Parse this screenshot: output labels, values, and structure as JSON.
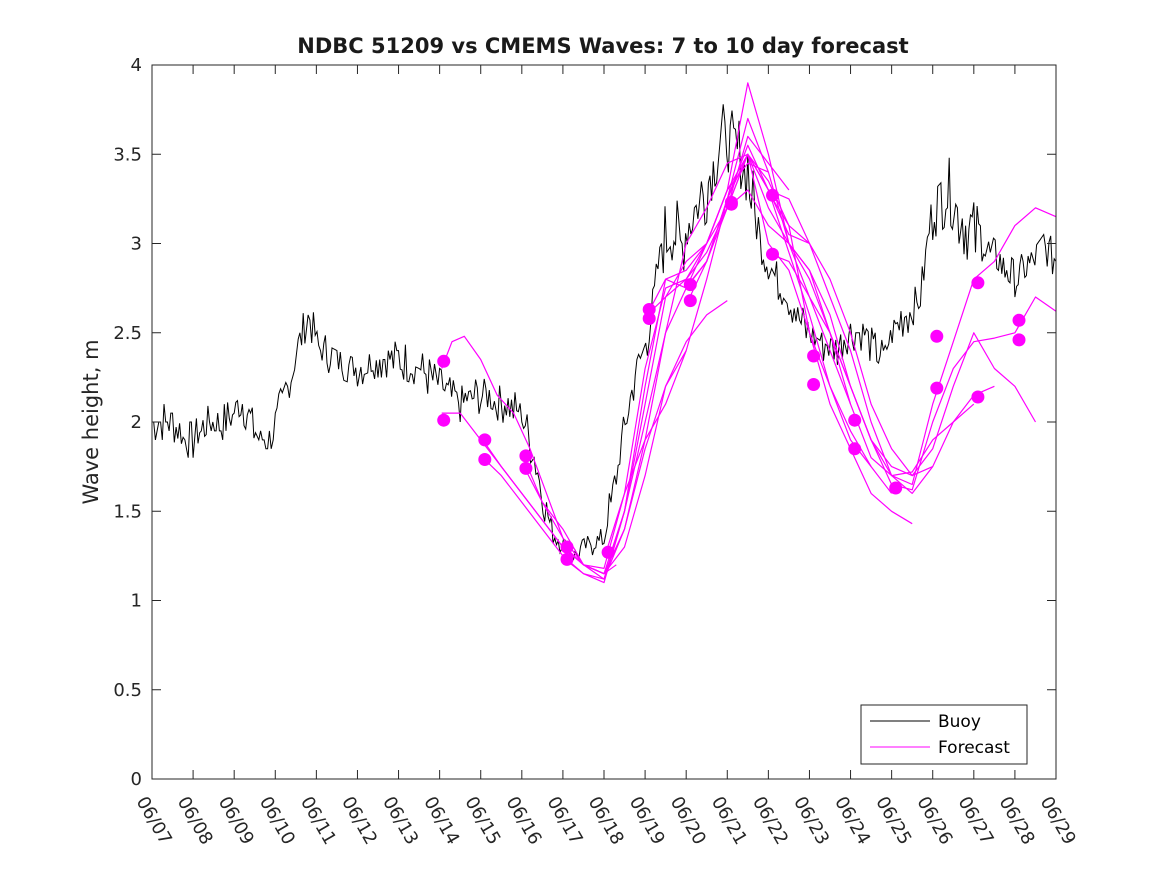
{
  "chart_data": {
    "type": "line",
    "title": "NDBC 51209 vs CMEMS Waves: 7 to 10 day forecast",
    "xlabel": "",
    "ylabel": "Wave height, m",
    "x_tick_labels": [
      "06/07",
      "06/08",
      "06/09",
      "06/10",
      "06/11",
      "06/12",
      "06/13",
      "06/14",
      "06/15",
      "06/16",
      "06/17",
      "06/18",
      "06/19",
      "06/20",
      "06/21",
      "06/22",
      "06/23",
      "06/24",
      "06/25",
      "06/26",
      "06/27",
      "06/28",
      "06/29"
    ],
    "xlim": [
      "06/07",
      "06/29"
    ],
    "ylim": [
      0,
      4
    ],
    "y_ticks": [
      "0",
      "0.5",
      "1",
      "1.5",
      "2",
      "2.5",
      "3",
      "3.5",
      "4"
    ],
    "grid": false,
    "legend": {
      "placement": "bottom-right",
      "entries": [
        "Buoy",
        "Forecast"
      ]
    },
    "colors": {
      "buoy": "#000000",
      "forecast": "#ff00ff"
    },
    "series": [
      {
        "name": "Buoy",
        "x_days_from_0607": [
          0,
          0.5,
          0.8,
          1.0,
          1.4,
          1.8,
          2.2,
          2.6,
          2.9,
          3.0,
          3.3,
          3.6,
          3.8,
          4.1,
          4.5,
          5.0,
          5.5,
          6.0,
          6.5,
          7.0,
          7.5,
          8.0,
          8.5,
          9.0,
          9.3,
          9.6,
          9.8,
          10.1,
          10.3,
          10.6,
          11.0,
          11.3,
          11.6,
          11.8,
          12.1,
          12.4,
          12.7,
          12.9,
          13.2,
          13.5,
          13.7,
          13.9,
          14.2,
          14.5,
          14.8,
          15.0,
          15.2,
          15.5,
          15.8,
          16.0,
          16.3,
          16.6,
          17.0,
          17.3,
          17.6,
          17.8,
          18.1,
          18.4,
          18.7,
          19.0,
          19.4,
          19.8,
          20.2,
          20.6,
          21.0,
          21.4,
          21.7,
          22.0
        ],
        "values": [
          2.0,
          2.0,
          1.9,
          1.9,
          2.0,
          2.0,
          2.1,
          1.9,
          1.9,
          2.0,
          2.2,
          2.45,
          2.6,
          2.4,
          2.35,
          2.3,
          2.35,
          2.35,
          2.3,
          2.2,
          2.1,
          2.15,
          2.1,
          2.05,
          1.8,
          1.5,
          1.35,
          1.3,
          1.25,
          1.3,
          1.35,
          1.7,
          2.1,
          2.3,
          2.5,
          3.0,
          3.1,
          3.0,
          3.2,
          3.3,
          3.5,
          3.6,
          3.55,
          3.4,
          3.0,
          2.9,
          2.8,
          2.7,
          2.55,
          2.5,
          2.45,
          2.4,
          2.5,
          2.5,
          2.4,
          2.35,
          2.55,
          2.6,
          2.7,
          3.2,
          3.3,
          3.1,
          3.0,
          2.9,
          2.8,
          2.9,
          3.0,
          2.9
        ]
      },
      {
        "name": "Forecast",
        "values": [
          {
            "x_days_from_0607": [
              7.05,
              7.3,
              7.6,
              8.0,
              8.4,
              8.8,
              9.2,
              9.6,
              10.0,
              10.5,
              11.0,
              11.3
            ],
            "values": [
              2.3,
              2.45,
              2.48,
              2.35,
              2.15,
              2.05,
              1.85,
              1.6,
              1.35,
              1.2,
              1.15,
              1.2
            ]
          },
          {
            "x_days_from_0607": [
              7.05,
              7.5,
              8.0,
              8.5,
              9.0,
              9.5,
              10.0,
              10.5,
              11.0,
              11.5,
              12.0,
              12.5,
              13.0
            ],
            "values": [
              2.05,
              2.05,
              1.9,
              1.75,
              1.6,
              1.45,
              1.3,
              1.2,
              1.15,
              1.3,
              1.7,
              2.2,
              2.4
            ]
          },
          {
            "x_days_from_0607": [
              8.05,
              8.5,
              9.0,
              9.5,
              10.0,
              10.5,
              11.0,
              11.5,
              12.0,
              12.5,
              13.0,
              13.5,
              14.0
            ],
            "values": [
              1.9,
              1.75,
              1.6,
              1.45,
              1.3,
              1.2,
              1.15,
              1.4,
              1.85,
              2.2,
              2.45,
              2.6,
              2.68
            ]
          },
          {
            "x_days_from_0607": [
              8.05,
              8.5,
              9.0,
              9.5,
              10.0,
              10.5,
              11.0,
              11.5,
              12.0,
              12.5,
              13.0,
              13.5,
              14.0,
              14.5,
              15.0
            ],
            "values": [
              1.8,
              1.7,
              1.55,
              1.4,
              1.25,
              1.15,
              1.12,
              1.5,
              2.1,
              2.7,
              2.9,
              3.0,
              3.3,
              3.45,
              3.4
            ]
          },
          {
            "x_days_from_0607": [
              9.05,
              9.5,
              10.0,
              10.5,
              11.0,
              11.5,
              12.0,
              12.5,
              13.0,
              13.5,
              14.0,
              14.5,
              15.0,
              15.5
            ],
            "values": [
              1.8,
              1.55,
              1.35,
              1.2,
              1.15,
              1.5,
              2.2,
              2.8,
              2.85,
              3.0,
              3.2,
              3.6,
              3.45,
              3.3
            ]
          },
          {
            "x_days_from_0607": [
              9.05,
              9.5,
              10.0,
              10.5,
              11.0,
              11.5,
              12.0,
              12.5,
              13.0,
              13.5,
              14.0,
              14.5,
              15.0,
              15.5,
              16.0
            ],
            "values": [
              1.75,
              1.55,
              1.4,
              1.2,
              1.12,
              1.4,
              1.9,
              2.5,
              2.75,
              2.9,
              3.25,
              3.5,
              3.3,
              3.05,
              3.0
            ]
          },
          {
            "x_days_from_0607": [
              10.05,
              10.5,
              11.0,
              11.5,
              12.0,
              12.5,
              13.0,
              13.5,
              14.0,
              14.5,
              15.0,
              15.5,
              16.0,
              16.5,
              17.0
            ],
            "values": [
              1.3,
              1.2,
              1.18,
              1.6,
              2.3,
              2.75,
              2.8,
              3.0,
              3.3,
              3.9,
              3.5,
              3.0,
              2.7,
              2.4,
              2.1
            ]
          },
          {
            "x_days_from_0607": [
              10.05,
              10.5,
              11.0,
              11.5,
              12.0,
              12.5,
              13.0,
              13.5,
              14.0,
              14.5,
              15.0,
              15.5,
              16.0,
              16.5,
              17.0,
              17.5
            ],
            "values": [
              1.23,
              1.15,
              1.1,
              1.5,
              2.0,
              2.5,
              3.0,
              3.2,
              3.45,
              3.5,
              3.0,
              2.85,
              2.5,
              2.2,
              1.95,
              1.75
            ]
          },
          {
            "x_days_from_0607": [
              11.05,
              11.5,
              12.0,
              12.5,
              13.0,
              13.5,
              14.0,
              14.5,
              15.0,
              15.5,
              16.0,
              16.5,
              17.0,
              17.5,
              18.0
            ],
            "values": [
              1.27,
              1.6,
              1.9,
              2.1,
              2.4,
              2.8,
              3.25,
              3.55,
              3.3,
              2.95,
              2.6,
              2.2,
              1.9,
              1.75,
              1.6
            ]
          },
          {
            "x_days_from_0607": [
              12.05,
              12.5,
              13.0,
              13.5,
              14.0,
              14.5,
              15.0,
              15.5,
              16.0,
              16.5,
              17.0,
              17.5,
              18.0,
              18.5
            ],
            "values": [
              2.6,
              2.8,
              2.75,
              3.0,
              3.3,
              3.5,
              3.35,
              3.1,
              2.5,
              2.1,
              1.85,
              1.6,
              1.5,
              1.43
            ]
          },
          {
            "x_days_from_0607": [
              12.05,
              12.5,
              13.0,
              13.5,
              14.0,
              14.5,
              15.0,
              15.5,
              16.0,
              16.5,
              17.0,
              17.5,
              18.0,
              18.5,
              19.0
            ],
            "values": [
              2.6,
              2.7,
              2.8,
              2.95,
              3.2,
              3.3,
              3.1,
              3.0,
              2.8,
              2.5,
              2.2,
              1.9,
              1.75,
              1.7,
              1.75
            ]
          },
          {
            "x_days_from_0607": [
              13.05,
              13.5,
              14.0,
              14.5,
              15.0,
              15.5,
              16.0,
              16.5,
              17.0,
              17.5,
              18.0,
              18.5,
              19.0,
              19.5,
              20.0
            ],
            "values": [
              2.77,
              2.9,
              3.25,
              3.7,
              3.4,
              3.0,
              2.85,
              2.5,
              2.1,
              1.8,
              1.7,
              1.72,
              1.9,
              2.0,
              2.1
            ]
          },
          {
            "x_days_from_0607": [
              13.05,
              13.5,
              14.0,
              14.5,
              15.0,
              15.5,
              16.0,
              16.5,
              17.0,
              17.5,
              18.0,
              18.5,
              19.0,
              19.5,
              20.0,
              20.5
            ],
            "values": [
              2.68,
              2.9,
              3.2,
              3.5,
              3.2,
              3.0,
              2.85,
              2.6,
              2.2,
              1.9,
              1.7,
              1.6,
              1.75,
              2.0,
              2.15,
              2.2
            ]
          },
          {
            "x_days_from_0607": [
              14.05,
              14.5,
              15.0,
              15.5,
              16.0,
              16.5,
              17.0,
              17.5,
              18.0,
              18.5,
              19.0,
              19.5,
              20.0,
              20.5,
              21.0,
              21.5
            ],
            "values": [
              3.23,
              3.5,
              3.3,
              3.25,
              3.0,
              2.8,
              2.5,
              2.1,
              1.85,
              1.7,
              1.85,
              2.2,
              2.5,
              2.3,
              2.2,
              2.0
            ]
          },
          {
            "x_days_from_0607": [
              15.05,
              15.5,
              16.0,
              16.5,
              17.0,
              17.5,
              18.0,
              18.5,
              19.0,
              19.5,
              20.0,
              20.5,
              21.0,
              21.5,
              22.0
            ],
            "values": [
              3.27,
              3.1,
              3.0,
              2.7,
              2.4,
              2.0,
              1.7,
              1.65,
              2.1,
              2.45,
              2.8,
              2.9,
              3.1,
              3.2,
              3.15
            ]
          },
          {
            "x_days_from_0607": [
              15.05,
              15.5,
              16.0,
              16.5,
              17.0,
              17.5,
              18.0,
              18.5,
              19.0,
              19.5,
              20.0,
              20.5,
              21.0,
              21.5,
              22.0
            ],
            "values": [
              2.94,
              2.9,
              2.7,
              2.5,
              2.2,
              1.9,
              1.65,
              1.62,
              2.0,
              2.3,
              2.45,
              2.47,
              2.5,
              2.7,
              2.62
            ]
          }
        ]
      }
    ],
    "markers": {
      "x_days_from_0607": [
        7.1,
        7.1,
        8.1,
        8.1,
        9.1,
        9.1,
        10.1,
        10.1,
        11.1,
        12.1,
        12.1,
        13.1,
        13.1,
        14.1,
        14.1,
        15.1,
        15.1,
        16.1,
        16.1,
        17.1,
        17.1,
        18.1,
        19.1,
        19.1,
        20.1,
        20.1,
        21.1,
        21.1
      ],
      "values": [
        2.34,
        2.01,
        1.9,
        1.79,
        1.81,
        1.74,
        1.3,
        1.23,
        1.27,
        2.63,
        2.58,
        2.77,
        2.68,
        3.23,
        3.22,
        3.27,
        2.94,
        2.37,
        2.21,
        2.01,
        1.85,
        1.63,
        2.19,
        2.48,
        2.14,
        2.78,
        2.46,
        2.57
      ]
    }
  }
}
